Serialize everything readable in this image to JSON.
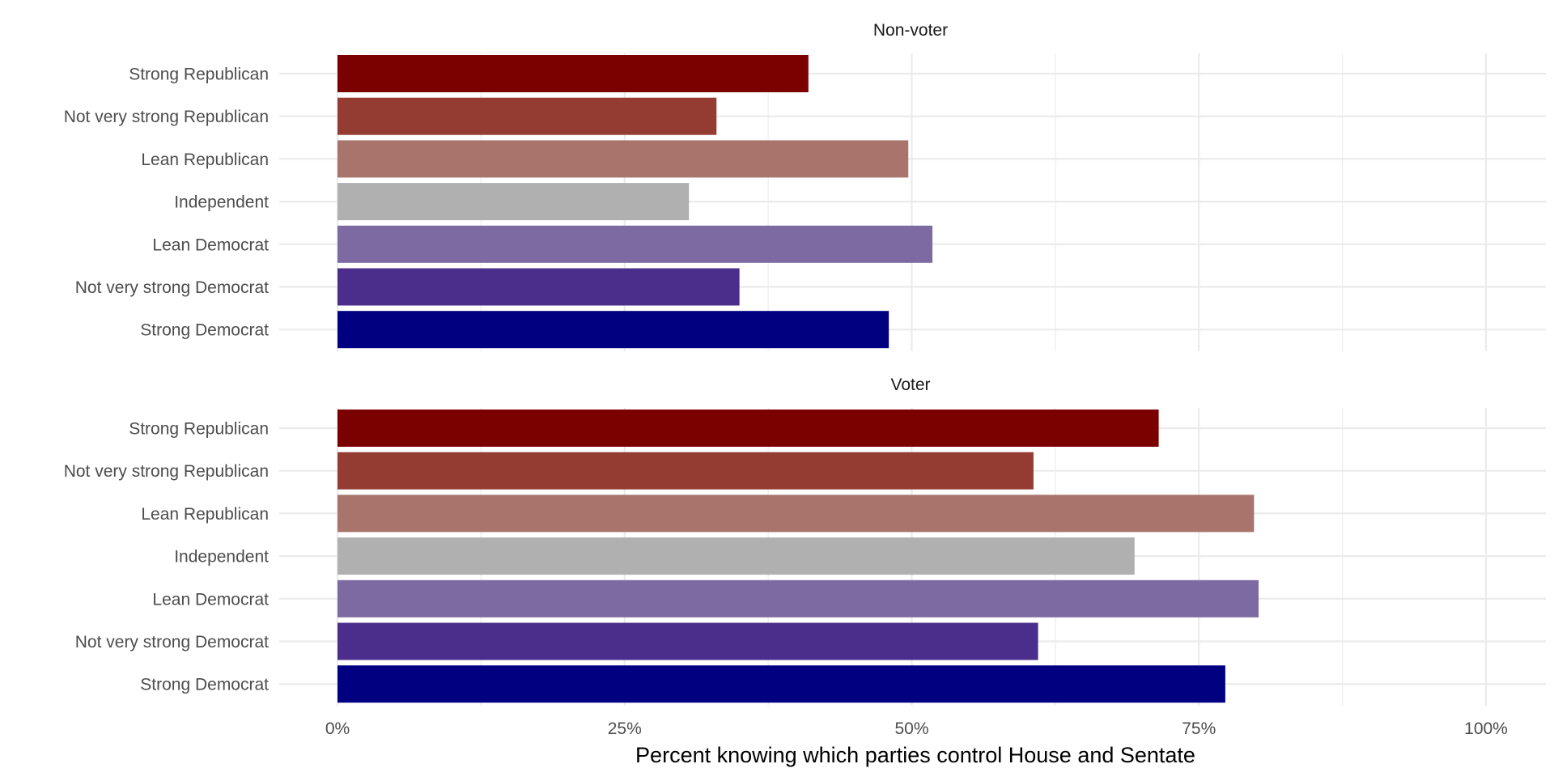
{
  "chart_data": {
    "type": "bar",
    "orientation": "horizontal",
    "facets": [
      "Non-voter",
      "Voter"
    ],
    "categories": [
      "Strong Republican",
      "Not very strong Republican",
      "Lean Republican",
      "Independent",
      "Lean Democrat",
      "Not very strong Democrat",
      "Strong Democrat"
    ],
    "colors": [
      "#7b0000",
      "#943c32",
      "#a8746c",
      "#b0b0b0",
      "#7e6aa2",
      "#4b2e8b",
      "#000080"
    ],
    "panels": [
      {
        "facet": "Non-voter",
        "values": [
          0.41,
          0.33,
          0.497,
          0.306,
          0.518,
          0.35,
          0.48
        ]
      },
      {
        "facet": "Voter",
        "values": [
          0.715,
          0.606,
          0.798,
          0.694,
          0.802,
          0.61,
          0.773
        ]
      }
    ],
    "xlim": [
      0,
      1
    ],
    "x_ticks": [
      0,
      0.25,
      0.5,
      0.75,
      1
    ],
    "x_tick_labels": [
      "0%",
      "25%",
      "50%",
      "75%",
      "100%"
    ],
    "xlabel": "Percent knowing which parties control House and Sentate",
    "ylabel": "",
    "title": "",
    "grid": true,
    "legend": "none"
  }
}
